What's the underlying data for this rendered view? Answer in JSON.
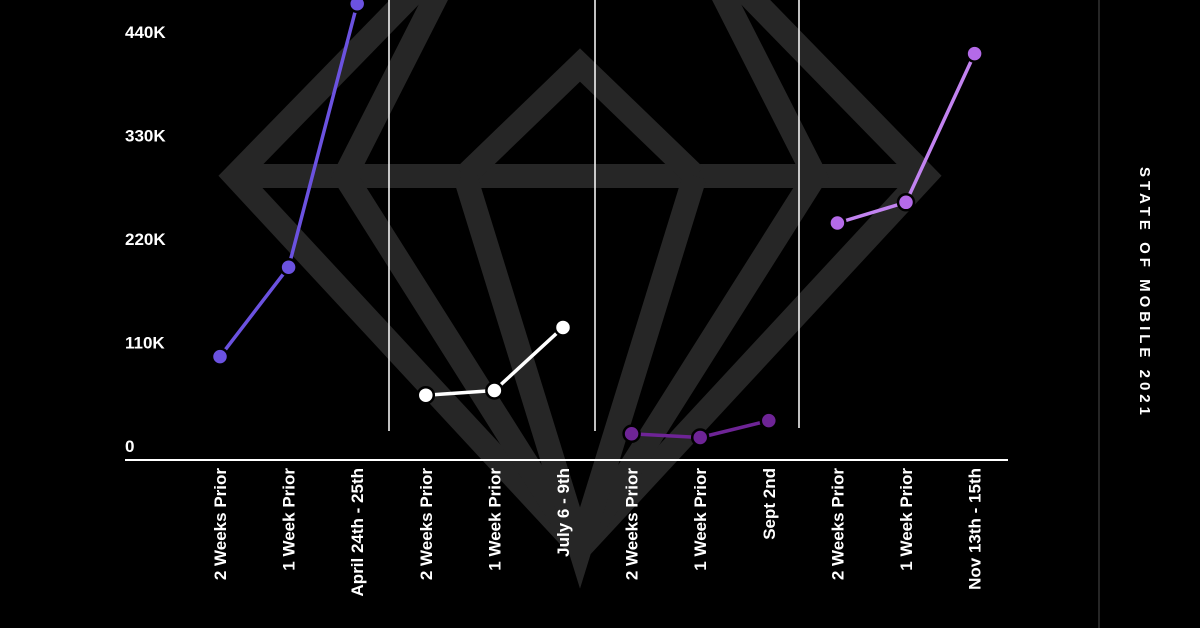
{
  "chart_data": {
    "type": "line",
    "title": "",
    "xlabel": "",
    "ylabel": "",
    "ylim": [
      0,
      440000
    ],
    "y_ticks": [
      "0",
      "110K",
      "220K",
      "330K",
      "440K"
    ],
    "y_tick_values": [
      0,
      110000,
      220000,
      330000,
      440000
    ],
    "categories": [
      "2 Weeks Prior",
      "1 Week Prior",
      "April 24th - 25th",
      "2 Weeks Prior",
      "1 Week Prior",
      "July 6 - 9th",
      "2 Weeks Prior",
      "1 Week Prior",
      "Sept 2nd",
      "2 Weeks Prior",
      "1 Week Prior",
      "Nov 13th - 15th"
    ],
    "series": [
      {
        "group": "April 24th - 25th",
        "color": "#6b52e0",
        "line_color": "#6b52e0",
        "x": [
          0,
          1,
          2
        ],
        "values": [
          95000,
          190000,
          470000
        ]
      },
      {
        "group": "July 6 - 9th",
        "color": "#ffffff",
        "line_color": "#ffffff",
        "x": [
          3,
          4,
          5
        ],
        "values": [
          54000,
          59000,
          126000
        ]
      },
      {
        "group": "Sept 2nd",
        "color": "#6e2496",
        "line_color": "#6e2496",
        "x": [
          6,
          7,
          8
        ],
        "values": [
          13000,
          9000,
          27000
        ]
      },
      {
        "group": "Nov 13th - 15th",
        "color": "#b46ae8",
        "line_color": "#c283f0",
        "x": [
          9,
          10,
          11
        ],
        "values": [
          237000,
          259000,
          417000
        ]
      }
    ],
    "grid": false,
    "legend": "none",
    "watermark": "diamond",
    "side_text": "STATE OF MOBILE 2021"
  }
}
